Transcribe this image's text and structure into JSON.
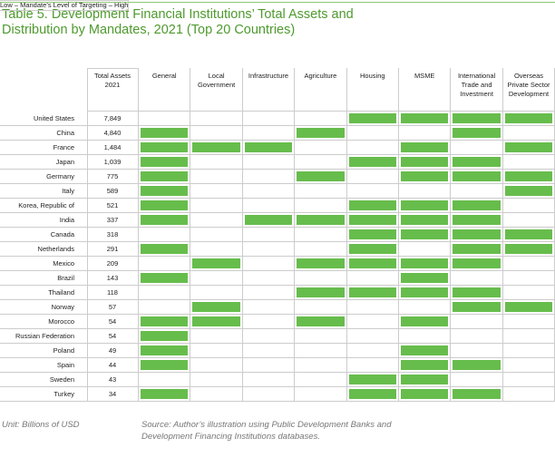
{
  "title": "Table 5. Development Financial Institutions’ Total Assets and Distribution by Mandates, 2021 (Top 20 Countries)",
  "table": {
    "span_header": "Low – Mandate’s Level of Targeting – High",
    "assets_header": "Total Assets 2021",
    "columns": [
      "General",
      "Local Government",
      "Infrastructure",
      "Agriculture",
      "Housing",
      "MSME",
      "International Trade and Investment",
      "Overseas Private Sector Development"
    ],
    "rows": [
      {
        "country": "United States",
        "assets": "7,849",
        "mandates": [
          false,
          false,
          false,
          false,
          true,
          true,
          true,
          true
        ]
      },
      {
        "country": "China",
        "assets": "4,840",
        "mandates": [
          true,
          false,
          false,
          true,
          false,
          false,
          true,
          false
        ]
      },
      {
        "country": "France",
        "assets": "1,484",
        "mandates": [
          true,
          true,
          true,
          false,
          false,
          true,
          false,
          true
        ]
      },
      {
        "country": "Japan",
        "assets": "1,039",
        "mandates": [
          true,
          false,
          false,
          false,
          true,
          true,
          true,
          false
        ]
      },
      {
        "country": "Germany",
        "assets": "775",
        "mandates": [
          true,
          false,
          false,
          true,
          false,
          true,
          true,
          true
        ]
      },
      {
        "country": "Italy",
        "assets": "589",
        "mandates": [
          true,
          false,
          false,
          false,
          false,
          false,
          false,
          true
        ]
      },
      {
        "country": "Korea, Republic of",
        "assets": "521",
        "mandates": [
          true,
          false,
          false,
          false,
          true,
          true,
          true,
          false
        ]
      },
      {
        "country": "India",
        "assets": "337",
        "mandates": [
          true,
          false,
          true,
          true,
          true,
          true,
          true,
          false
        ]
      },
      {
        "country": "Canada",
        "assets": "318",
        "mandates": [
          false,
          false,
          false,
          false,
          true,
          true,
          true,
          true
        ]
      },
      {
        "country": "Netherlands",
        "assets": "291",
        "mandates": [
          true,
          false,
          false,
          false,
          true,
          false,
          true,
          true
        ]
      },
      {
        "country": "Mexico",
        "assets": "209",
        "mandates": [
          false,
          true,
          false,
          true,
          true,
          true,
          true,
          false
        ]
      },
      {
        "country": "Brazil",
        "assets": "143",
        "mandates": [
          true,
          false,
          false,
          false,
          false,
          true,
          false,
          false
        ]
      },
      {
        "country": "Thailand",
        "assets": "118",
        "mandates": [
          false,
          false,
          false,
          true,
          true,
          true,
          true,
          false
        ]
      },
      {
        "country": "Norway",
        "assets": "57",
        "mandates": [
          false,
          true,
          false,
          false,
          false,
          false,
          true,
          true
        ]
      },
      {
        "country": "Morocco",
        "assets": "54",
        "mandates": [
          true,
          true,
          false,
          true,
          false,
          true,
          false,
          false
        ]
      },
      {
        "country": "Russian Federation",
        "assets": "54",
        "mandates": [
          true,
          false,
          false,
          false,
          false,
          false,
          false,
          false
        ]
      },
      {
        "country": "Poland",
        "assets": "49",
        "mandates": [
          true,
          false,
          false,
          false,
          false,
          true,
          false,
          false
        ]
      },
      {
        "country": "Spain",
        "assets": "44",
        "mandates": [
          true,
          false,
          false,
          false,
          false,
          true,
          true,
          false
        ]
      },
      {
        "country": "Sweden",
        "assets": "43",
        "mandates": [
          false,
          false,
          false,
          false,
          true,
          true,
          false,
          false
        ]
      },
      {
        "country": "Turkey",
        "assets": "34",
        "mandates": [
          true,
          false,
          false,
          false,
          true,
          true,
          true,
          false
        ]
      }
    ]
  },
  "unit_note": "Unit: Billions of USD",
  "source": "Source: Author’s illustration using Public Development Banks and Development Financing Institutions databases."
}
